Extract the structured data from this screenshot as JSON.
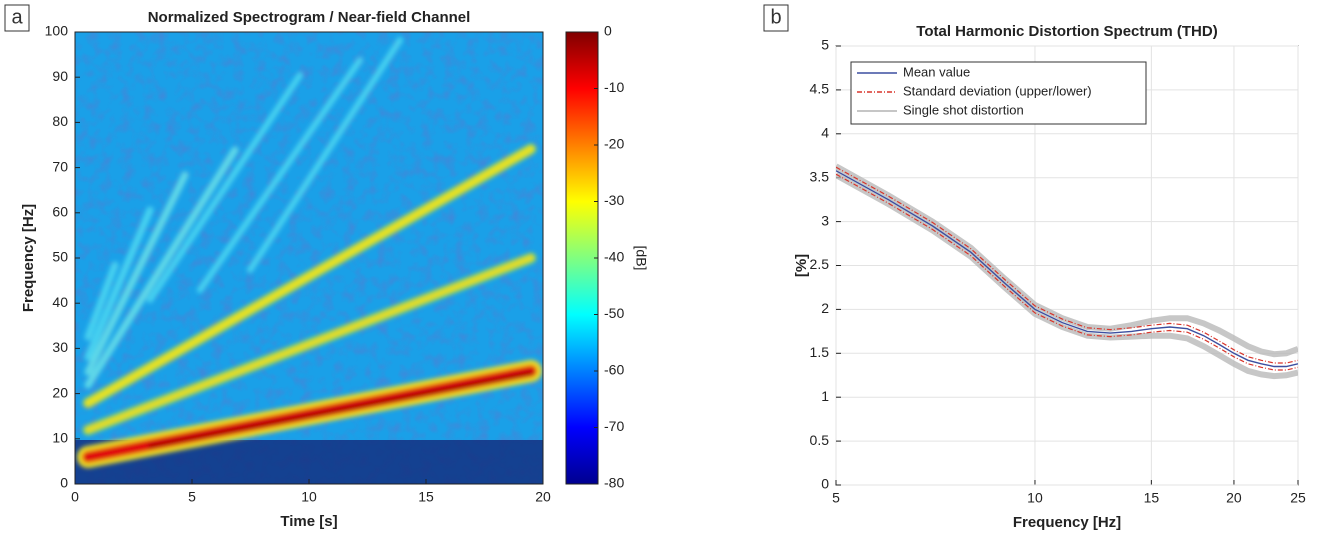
{
  "chart_data": [
    {
      "type": "heatmap",
      "panel": "a",
      "title": "Normalized Spectrogram / Near-field Channel",
      "xlabel": "Time [s]",
      "ylabel": "Frequency [Hz]",
      "xlim": [
        0,
        20
      ],
      "xticks": [
        0,
        5,
        10,
        15,
        20
      ],
      "ylim": [
        0,
        100
      ],
      "yticks": [
        0,
        10,
        20,
        30,
        40,
        50,
        60,
        70,
        80,
        90,
        100
      ],
      "colorbar_label": "[dB]",
      "clim": [
        -80,
        0
      ],
      "cticks": [
        -80,
        -70,
        -60,
        -50,
        -40,
        -30,
        -20,
        -10,
        0
      ],
      "colormap": [
        "#00008f",
        "#0000ff",
        "#0080ff",
        "#00ffff",
        "#80ff80",
        "#ffff00",
        "#ff8000",
        "#ff0000",
        "#800000"
      ]
    },
    {
      "type": "line",
      "panel": "b",
      "title": "Total Harmonic Distortion Spectrum (THD)",
      "xlabel": "Frequency [Hz]",
      "ylabel": "[%]",
      "xscale": "log",
      "grid": true,
      "legend": "upper left",
      "xlim": [
        5,
        25
      ],
      "xticks": [
        5,
        10,
        15,
        20,
        25
      ],
      "ylim": [
        0,
        5
      ],
      "yticks": [
        0,
        0.5,
        1,
        1.5,
        2,
        2.5,
        3,
        3.5,
        4,
        4.5,
        5
      ],
      "x": [
        5,
        6,
        7,
        8,
        9,
        10,
        11,
        12,
        13,
        14,
        15,
        16,
        17,
        18,
        19,
        20,
        21,
        22,
        23,
        24,
        25
      ],
      "series": [
        {
          "name": "Mean value",
          "color": "#3b4fa0",
          "values": [
            3.58,
            3.25,
            2.95,
            2.65,
            2.3,
            2.0,
            1.85,
            1.75,
            1.73,
            1.75,
            1.78,
            1.8,
            1.78,
            1.7,
            1.6,
            1.5,
            1.42,
            1.38,
            1.35,
            1.35,
            1.38
          ]
        },
        {
          "name": "Standard deviation (upper/lower)",
          "color": "#d9352b",
          "style": "dashdot",
          "upper": [
            3.62,
            3.29,
            2.99,
            2.69,
            2.34,
            2.04,
            1.89,
            1.79,
            1.77,
            1.79,
            1.82,
            1.84,
            1.82,
            1.74,
            1.64,
            1.54,
            1.46,
            1.42,
            1.39,
            1.39,
            1.42
          ],
          "lower": [
            3.54,
            3.21,
            2.91,
            2.61,
            2.26,
            1.96,
            1.81,
            1.71,
            1.69,
            1.71,
            1.74,
            1.76,
            1.74,
            1.66,
            1.56,
            1.46,
            1.38,
            1.34,
            1.31,
            1.31,
            1.34
          ]
        },
        {
          "name": "Single shot distortion",
          "color": "#b4b4b4",
          "shots": [
            [
              3.63,
              3.3,
              3.0,
              2.7,
              2.35,
              2.05,
              1.9,
              1.8,
              1.78,
              1.82,
              1.87,
              1.9,
              1.9,
              1.84,
              1.76,
              1.67,
              1.58,
              1.52,
              1.49,
              1.5,
              1.55
            ],
            [
              3.53,
              3.2,
              2.9,
              2.6,
              2.25,
              1.95,
              1.8,
              1.7,
              1.68,
              1.69,
              1.7,
              1.7,
              1.67,
              1.58,
              1.48,
              1.38,
              1.3,
              1.26,
              1.24,
              1.25,
              1.28
            ]
          ]
        }
      ]
    }
  ]
}
